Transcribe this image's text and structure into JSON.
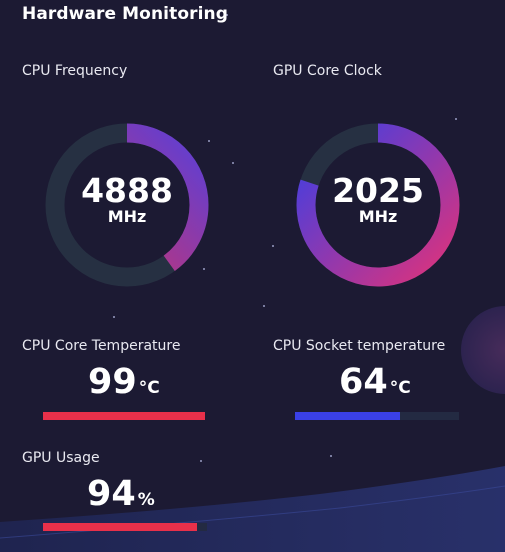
{
  "title": "Hardware Monitoring",
  "gauges": [
    {
      "label": "CPU Frequency",
      "value": "4888",
      "unit": "MHz",
      "level_fraction": 0.4,
      "gradient_start": "#e0325a",
      "gradient_end": "#5a3fd8"
    },
    {
      "label": "GPU Core Clock",
      "value": "2025",
      "unit": "MHz",
      "level_fraction": 0.8,
      "gradient_start": "#3a3fe6",
      "gradient_end": "#e0327a"
    }
  ],
  "meters": [
    {
      "label": "CPU Core Temperature",
      "value": "99",
      "unit": "°C",
      "level_fraction": 1.0,
      "color": "#e8304a"
    },
    {
      "label": "CPU Socket temperature",
      "value": "64",
      "unit": "°C",
      "level_fraction": 0.64,
      "color": "#3a40e6"
    },
    {
      "label": "GPU Usage",
      "value": "94",
      "unit": "%",
      "level_fraction": 0.94,
      "color": "#e8304a"
    }
  ],
  "colors": {
    "background": "#1c1a33",
    "track": "#263042",
    "bar_track": "#232a42"
  }
}
